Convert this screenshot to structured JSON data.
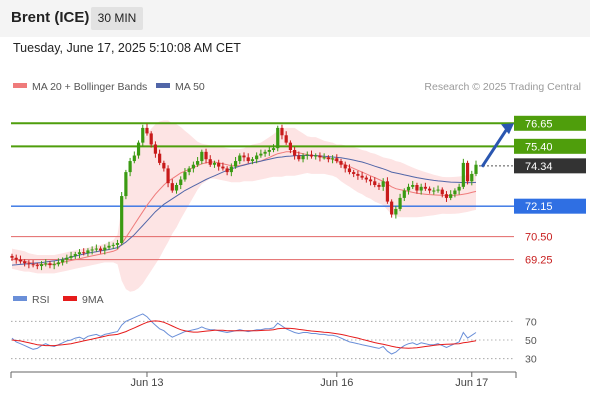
{
  "header": {
    "instrument": "Brent (ICE)",
    "timeframe": "30 MIN"
  },
  "timestamp": "Tuesday, June 17, 2025 5:10:08 AM CET",
  "credit": "Research © 2025 Trading Central",
  "colors": {
    "resistance": "#4f9e0c",
    "pivot": "#2f6fe3",
    "support": "#e36666",
    "current": "#333333",
    "ma50": "#5166a8",
    "ma20": "#ef7b7b",
    "bollinger_fill": "#fde4e4",
    "candle_up": "#3a9a12",
    "candle_down": "#c81b1b",
    "rsi": "#6a8fd8",
    "rsi_ma": "#e61b1b",
    "arrow": "#2a56b0"
  },
  "chart_data": [
    {
      "type": "candlestick",
      "title": "",
      "legend": [
        {
          "name": "MA 20 + Bollinger Bands",
          "color": "#ef7b7b"
        },
        {
          "name": "MA 50",
          "color": "#5166a8"
        }
      ],
      "legend_position": "top-left",
      "x_ticks": [
        "Jun 13",
        "Jun 16",
        "Jun 17"
      ],
      "ylim": [
        67.6,
        79.0
      ],
      "current_price": {
        "label": "74.34",
        "value": 74.34
      },
      "levels": [
        {
          "label": "76.65",
          "value": 76.65,
          "kind": "resistance"
        },
        {
          "label": "75.40",
          "value": 75.4,
          "kind": "resistance"
        },
        {
          "label": "72.15",
          "value": 72.15,
          "kind": "pivot"
        },
        {
          "label": "70.50",
          "value": 70.5,
          "kind": "support"
        },
        {
          "label": "69.25",
          "value": 69.25,
          "kind": "support"
        }
      ],
      "close": [
        69.35,
        69.25,
        69.15,
        69.05,
        69.0,
        68.95,
        68.9,
        69.0,
        69.05,
        68.95,
        69.0,
        69.1,
        69.25,
        69.35,
        69.45,
        69.55,
        69.65,
        69.6,
        69.75,
        69.8,
        69.85,
        69.75,
        69.9,
        70.0,
        70.05,
        70.15,
        72.7,
        74.0,
        74.6,
        74.9,
        75.6,
        76.4,
        76.1,
        75.5,
        75.0,
        74.5,
        74.2,
        73.4,
        73.0,
        73.3,
        73.6,
        74.0,
        74.2,
        74.4,
        74.6,
        75.1,
        74.7,
        74.4,
        74.5,
        74.3,
        74.2,
        74.0,
        74.3,
        74.6,
        74.9,
        74.8,
        74.6,
        74.7,
        74.9,
        75.0,
        75.1,
        75.2,
        75.3,
        76.4,
        76.0,
        75.6,
        75.2,
        74.9,
        74.7,
        74.9,
        74.95,
        74.85,
        74.9,
        74.8,
        74.8,
        74.7,
        74.75,
        74.6,
        74.4,
        74.2,
        74.0,
        73.9,
        73.8,
        73.7,
        73.6,
        73.5,
        73.3,
        73.2,
        73.5,
        72.4,
        71.7,
        72.0,
        72.6,
        73.0,
        73.2,
        73.3,
        73.0,
        73.2,
        73.1,
        73.0,
        73.0,
        73.05,
        72.8,
        72.6,
        72.8,
        73.0,
        73.2,
        74.5,
        73.5,
        73.9,
        74.4
      ],
      "ma50": [
        68.95,
        68.97,
        68.99,
        69.01,
        69.03,
        69.05,
        69.07,
        69.09,
        69.12,
        69.15,
        69.18,
        69.22,
        69.27,
        69.32,
        69.38,
        69.44,
        69.5,
        69.55,
        69.6,
        69.64,
        69.68,
        69.72,
        69.76,
        69.8,
        69.85,
        69.9,
        70.05,
        70.2,
        70.4,
        70.6,
        70.85,
        71.1,
        71.35,
        71.6,
        71.85,
        72.05,
        72.25,
        72.4,
        72.55,
        72.7,
        72.85,
        73.0,
        73.12,
        73.24,
        73.36,
        73.48,
        73.6,
        73.7,
        73.8,
        73.9,
        74.0,
        74.1,
        74.18,
        74.25,
        74.32,
        74.38,
        74.44,
        74.5,
        74.55,
        74.6,
        74.65,
        74.7,
        74.75,
        74.8,
        74.82,
        74.85,
        74.87,
        74.89,
        74.9,
        74.9,
        74.9,
        74.9,
        74.9,
        74.88,
        74.86,
        74.84,
        74.82,
        74.8,
        74.78,
        74.74,
        74.7,
        74.65,
        74.6,
        74.55,
        74.48,
        74.4,
        74.32,
        74.25,
        74.18,
        74.1,
        74.0,
        73.95,
        73.9,
        73.85,
        73.8,
        73.75,
        73.7,
        73.66,
        73.62,
        73.58,
        73.55,
        73.52,
        73.5,
        73.48,
        73.46,
        73.45,
        73.44,
        73.43,
        73.43,
        73.43,
        73.44
      ],
      "ma20": [
        69.3,
        69.25,
        69.2,
        69.15,
        69.1,
        69.05,
        69.0,
        69.0,
        69.0,
        69.0,
        69.0,
        69.05,
        69.1,
        69.15,
        69.2,
        69.25,
        69.3,
        69.35,
        69.4,
        69.45,
        69.5,
        69.55,
        69.6,
        69.65,
        69.7,
        69.8,
        70.1,
        70.45,
        70.8,
        71.15,
        71.5,
        71.85,
        72.2,
        72.5,
        72.8,
        73.05,
        73.3,
        73.5,
        73.65,
        73.8,
        73.95,
        74.05,
        74.15,
        74.25,
        74.35,
        74.45,
        74.5,
        74.55,
        74.55,
        74.5,
        74.45,
        74.4,
        74.35,
        74.35,
        74.35,
        74.4,
        74.45,
        74.5,
        74.55,
        74.6,
        74.7,
        74.8,
        74.9,
        75.0,
        75.05,
        75.1,
        75.1,
        75.1,
        75.05,
        75.0,
        74.95,
        74.9,
        74.9,
        74.85,
        74.8,
        74.75,
        74.7,
        74.6,
        74.5,
        74.4,
        74.3,
        74.2,
        74.1,
        74.0,
        73.9,
        73.8,
        73.7,
        73.6,
        73.5,
        73.35,
        73.2,
        73.1,
        73.05,
        73.0,
        72.95,
        72.9,
        72.85,
        72.82,
        72.8,
        72.78,
        72.76,
        72.75,
        72.74,
        72.73,
        72.73,
        72.74,
        72.76,
        72.8,
        72.84,
        72.9,
        72.95
      ],
      "bb_width": [
        0.55,
        0.55,
        0.55,
        0.55,
        0.5,
        0.5,
        0.5,
        0.5,
        0.5,
        0.5,
        0.5,
        0.5,
        0.5,
        0.5,
        0.5,
        0.5,
        0.5,
        0.5,
        0.5,
        0.5,
        0.5,
        0.5,
        0.5,
        0.55,
        0.6,
        0.8,
        2.0,
        2.8,
        3.3,
        3.6,
        3.8,
        3.9,
        3.9,
        3.85,
        3.8,
        3.7,
        3.5,
        3.3,
        3.0,
        2.8,
        2.5,
        2.2,
        1.9,
        1.6,
        1.3,
        1.1,
        1.0,
        0.9,
        0.9,
        0.9,
        0.9,
        0.9,
        0.9,
        0.9,
        0.9,
        0.9,
        0.95,
        1.0,
        1.0,
        1.0,
        1.05,
        1.1,
        1.15,
        1.25,
        1.3,
        1.3,
        1.3,
        1.3,
        1.2,
        1.1,
        1.0,
        1.0,
        1.0,
        0.95,
        0.9,
        0.9,
        0.9,
        0.9,
        1.0,
        1.05,
        1.1,
        1.15,
        1.2,
        1.2,
        1.25,
        1.25,
        1.3,
        1.3,
        1.3,
        1.4,
        1.5,
        1.5,
        1.5,
        1.45,
        1.4,
        1.35,
        1.3,
        1.25,
        1.2,
        1.15,
        1.1,
        1.05,
        1.0,
        1.0,
        1.0,
        1.0,
        1.0,
        1.0,
        1.0,
        1.0,
        1.0
      ]
    },
    {
      "type": "line",
      "title": "",
      "legend": [
        {
          "name": "RSI",
          "color": "#6a8fd8"
        },
        {
          "name": "9MA",
          "color": "#e61b1b"
        }
      ],
      "legend_position": "top-left",
      "ylim": [
        20,
        80
      ],
      "y_ticks": [
        {
          "label": "70",
          "value": 70
        },
        {
          "label": "50",
          "value": 50
        },
        {
          "label": "30",
          "value": 30
        }
      ],
      "rsi": [
        52,
        48,
        46,
        44,
        42,
        40,
        41,
        44,
        46,
        44,
        43,
        45,
        47,
        49,
        50,
        52,
        53,
        51,
        54,
        55,
        56,
        54,
        56,
        57,
        58,
        59,
        66,
        70,
        72,
        74,
        76,
        78,
        75,
        70,
        66,
        62,
        60,
        56,
        53,
        55,
        57,
        59,
        60,
        61,
        62,
        64,
        62,
        61,
        61,
        60,
        59,
        58,
        59,
        60,
        61,
        60,
        59,
        60,
        61,
        61,
        62,
        62,
        63,
        68,
        65,
        62,
        60,
        58,
        57,
        58,
        58,
        57,
        57,
        56,
        56,
        55,
        55,
        54,
        52,
        50,
        48,
        47,
        46,
        45,
        44,
        43,
        42,
        41,
        43,
        38,
        35,
        37,
        41,
        44,
        46,
        47,
        45,
        47,
        46,
        45,
        45,
        46,
        44,
        42,
        44,
        46,
        48,
        58,
        52,
        55,
        58
      ],
      "rsi_ma": [
        50,
        49.5,
        49,
        48,
        47,
        46,
        45,
        44.5,
        44,
        44,
        44,
        44.5,
        45,
        45.5,
        46,
        47,
        48,
        49,
        50,
        51,
        52,
        53,
        54,
        55,
        55.5,
        56,
        57.5,
        59,
        61,
        63,
        65,
        67,
        69,
        70,
        70.5,
        70,
        69,
        67,
        65,
        63,
        61,
        60,
        59,
        58.5,
        58.5,
        59,
        59.5,
        60,
        60.5,
        60.5,
        60.5,
        60,
        60,
        60,
        60,
        60,
        60,
        60,
        60,
        60.2,
        60.4,
        60.6,
        61,
        62,
        62.4,
        62.6,
        62.4,
        62,
        61.4,
        60.8,
        60.2,
        59.6,
        59.2,
        58.8,
        58.4,
        58,
        57.4,
        56.8,
        56,
        55,
        54,
        53,
        52,
        50.8,
        49.6,
        48.4,
        47.2,
        46.2,
        45.4,
        44.4,
        43.4,
        42.4,
        41.8,
        41.4,
        41.2,
        41.4,
        41.8,
        42.4,
        43,
        43.6,
        44.2,
        44.8,
        45.2,
        45.4,
        45.6,
        45.8,
        46,
        47,
        47.6,
        48.4,
        49.2
      ]
    }
  ]
}
